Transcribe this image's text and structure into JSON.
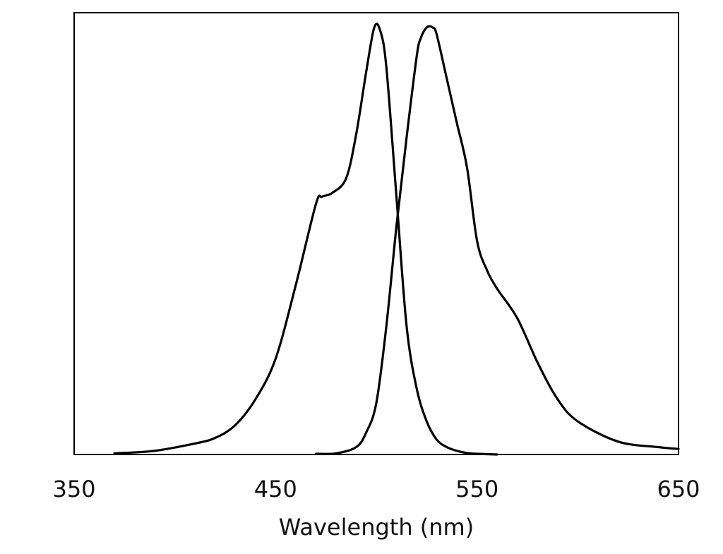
{
  "chart_data": {
    "type": "line",
    "title": "",
    "xlabel": "Wavelength (nm)",
    "ylabel": "",
    "xlim": [
      350,
      650
    ],
    "ylim": [
      0,
      1.2
    ],
    "xticks": [
      350,
      450,
      550,
      650
    ],
    "xtick_labels": [
      "350",
      "450",
      "550",
      "650"
    ],
    "yticks": [],
    "grid": false,
    "legend": "none",
    "line_color": "#000000",
    "series": [
      {
        "x": [
          370,
          390,
          410,
          420,
          430,
          440,
          450,
          460,
          470,
          473,
          478,
          485,
          490,
          495,
          499,
          502,
          505,
          510,
          515,
          520,
          525,
          530,
          535,
          540,
          545,
          550,
          560
        ],
        "y": [
          0.003,
          0.01,
          0.03,
          0.045,
          0.08,
          0.15,
          0.26,
          0.46,
          0.68,
          0.7,
          0.71,
          0.75,
          0.87,
          1.04,
          1.16,
          1.15,
          1.05,
          0.7,
          0.35,
          0.18,
          0.09,
          0.04,
          0.02,
          0.01,
          0.004,
          0.002,
          0.0
        ]
      },
      {
        "x": [
          470,
          480,
          490,
          495,
          500,
          505,
          510,
          515,
          520,
          522,
          525,
          528,
          530,
          535,
          540,
          545,
          550,
          555,
          560,
          570,
          580,
          590,
          600,
          620,
          640,
          650
        ],
        "y": [
          0.002,
          0.003,
          0.02,
          0.06,
          0.14,
          0.35,
          0.62,
          0.86,
          1.08,
          1.13,
          1.16,
          1.16,
          1.14,
          1.02,
          0.9,
          0.78,
          0.58,
          0.5,
          0.45,
          0.37,
          0.25,
          0.15,
          0.09,
          0.035,
          0.02,
          0.015
        ]
      }
    ]
  }
}
